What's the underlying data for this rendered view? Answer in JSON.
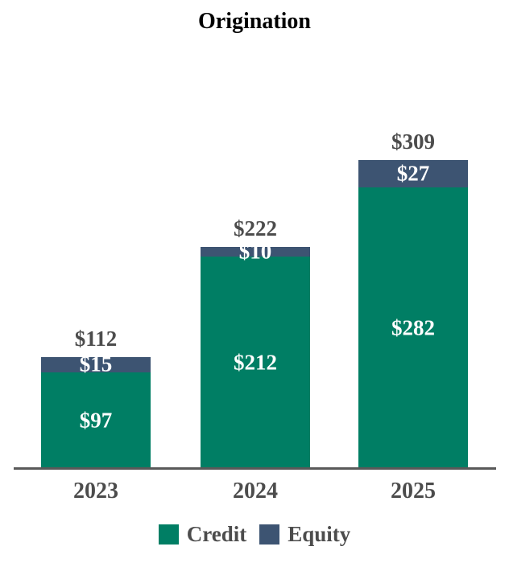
{
  "title": "Origination",
  "chart_data": {
    "type": "bar",
    "stacked": true,
    "title": "Origination",
    "categories": [
      "2023",
      "2024",
      "2025"
    ],
    "series": [
      {
        "name": "Credit",
        "color": "#007E64",
        "values": [
          97,
          212,
          282
        ],
        "labels": [
          "$97",
          "$212",
          "$282"
        ]
      },
      {
        "name": "Equity",
        "color": "#3D5472",
        "values": [
          15,
          10,
          27
        ],
        "labels": [
          "$15",
          "$10",
          "$27"
        ]
      }
    ],
    "totals": [
      112,
      222,
      309
    ],
    "total_labels": [
      "$112",
      "$222",
      "$309"
    ],
    "value_prefix": "$",
    "xlabel": "",
    "ylabel": "",
    "ylim": [
      0,
      309
    ],
    "grid": false,
    "y_axis_visible": false,
    "legend_position": "bottom",
    "label_color_inside": "#ffffff",
    "label_color_outside": "#4c4c4c",
    "axis_line_color": "#595959"
  }
}
